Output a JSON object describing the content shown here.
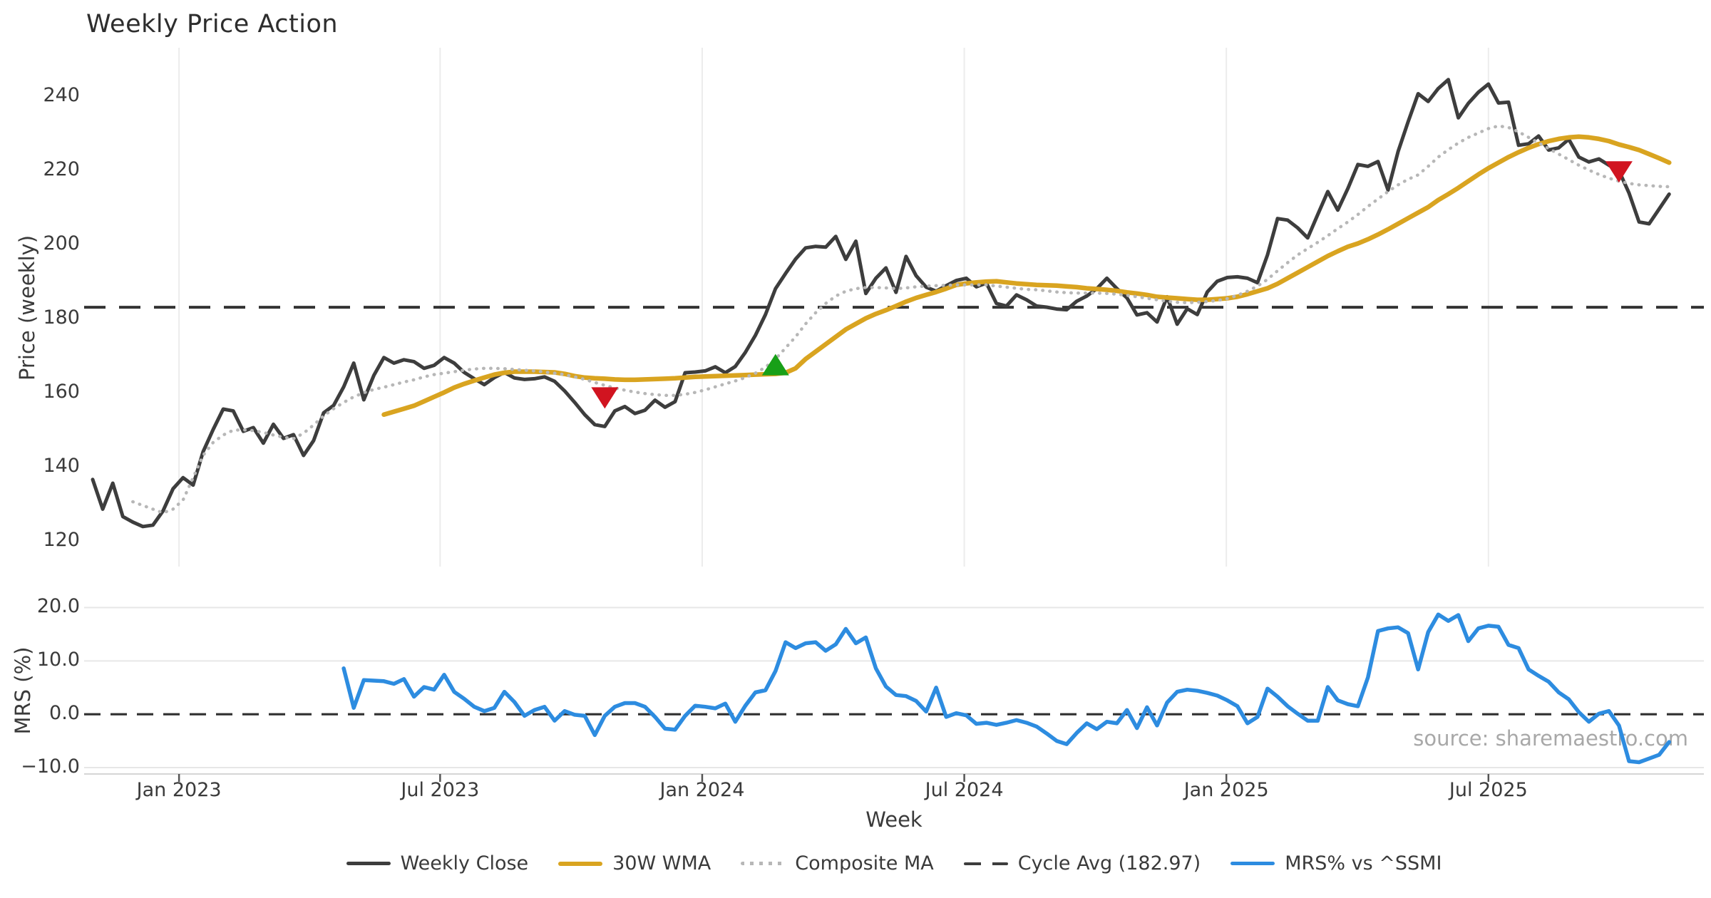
{
  "page": {
    "title": "Weekly Price Action",
    "source_note": "source: sharemaestro.com"
  },
  "legend": {
    "items": [
      {
        "label": "Weekly Close",
        "swatch": "solid",
        "color": "#3d3d3d",
        "thickness": 5
      },
      {
        "label": "30W WMA",
        "swatch": "solid",
        "color": "#d9a420",
        "thickness": 6
      },
      {
        "label": "Composite MA",
        "swatch": "dotted",
        "color": "#b7b7b7",
        "thickness": 5
      },
      {
        "label": "Cycle Avg (182.97)",
        "swatch": "dashed",
        "color": "#3d3d3d",
        "thickness": 4
      },
      {
        "label": "MRS% vs ^SSMI",
        "swatch": "solid",
        "color": "#2d8ce0",
        "thickness": 5
      }
    ]
  },
  "chart_data": {
    "type": "line",
    "title": "Weekly Price Action",
    "x_unit": "weekly, Nov 2022 - Oct 2025",
    "axes": {
      "x_label": "Week",
      "x_ticks": [
        {
          "week": 8.6,
          "label": "Jan 2023"
        },
        {
          "week": 34.6,
          "label": "Jul 2023"
        },
        {
          "week": 60.7,
          "label": "Jan 2024"
        },
        {
          "week": 86.8,
          "label": "Jul 2024"
        },
        {
          "week": 112.9,
          "label": "Jan 2025"
        },
        {
          "week": 139.0,
          "label": "Jul 2025"
        }
      ],
      "price_panel": {
        "y_label": "Price (weekly)",
        "ylim": [
          113,
          253
        ],
        "y_ticks": [
          {
            "v": 120,
            "label": "120"
          },
          {
            "v": 140,
            "label": "140"
          },
          {
            "v": 160,
            "label": "160"
          },
          {
            "v": 180,
            "label": "180"
          },
          {
            "v": 200,
            "label": "200"
          },
          {
            "v": 220,
            "label": "220"
          },
          {
            "v": 240,
            "label": "240"
          }
        ],
        "grid": "vertical-only"
      },
      "mrs_panel": {
        "y_label": "MRS (%)",
        "ylim": [
          -11.2,
          21.0
        ],
        "y_ticks": [
          {
            "v": -10,
            "label": "−10.0"
          },
          {
            "v": 0,
            "label": "0.0"
          },
          {
            "v": 10,
            "label": "10.0"
          },
          {
            "v": 20,
            "label": "20.0"
          }
        ],
        "grid": "horizontal-only",
        "zero_line_dashed": true
      }
    },
    "ref_lines": [
      {
        "name": "Cycle Avg",
        "panel": "price",
        "value": 182.97,
        "style": "dashed",
        "color": "#333333"
      },
      {
        "name": "Zero",
        "panel": "mrs",
        "value": 0,
        "style": "dashed",
        "color": "#2f2f2f"
      }
    ],
    "series": [
      {
        "name": "Weekly Close",
        "panel": "price",
        "color": "#3d3d3d",
        "style": "solid",
        "width": 5,
        "start_week": 0,
        "values": [
          136.5,
          128.5,
          135.5,
          126.5,
          125.0,
          123.8,
          124.2,
          128.0,
          134.0,
          137.0,
          135.0,
          144.0,
          150.0,
          155.5,
          155.0,
          149.5,
          150.5,
          146.3,
          151.4,
          147.6,
          148.6,
          143.0,
          147.0,
          154.5,
          156.5,
          161.5,
          167.9,
          158.0,
          164.6,
          169.4,
          167.9,
          168.8,
          168.3,
          166.5,
          167.3,
          169.4,
          167.9,
          165.4,
          163.7,
          162.1,
          164.0,
          165.4,
          163.9,
          163.5,
          163.7,
          164.2,
          163.0,
          160.4,
          157.3,
          154.0,
          151.3,
          150.8,
          155.0,
          156.2,
          154.3,
          155.2,
          157.9,
          156.0,
          157.5,
          165.3,
          165.5,
          165.8,
          166.9,
          165.3,
          167.0,
          170.8,
          175.4,
          181.0,
          188.0,
          192.1,
          196.0,
          199.0,
          199.4,
          199.2,
          202.1,
          195.9,
          200.8,
          186.7,
          190.8,
          193.6,
          187.0,
          196.7,
          191.5,
          188.4,
          187.3,
          188.8,
          190.2,
          190.8,
          188.5,
          189.5,
          184.0,
          183.3,
          186.3,
          185.0,
          183.3,
          183.0,
          182.5,
          182.3,
          184.6,
          186.0,
          188.0,
          190.8,
          188.0,
          185.5,
          180.9,
          181.5,
          179.0,
          185.8,
          178.4,
          182.6,
          181.0,
          187.1,
          190.0,
          191.0,
          191.2,
          190.8,
          189.6,
          197.1,
          206.9,
          206.5,
          204.4,
          201.7,
          208.0,
          214.2,
          209.2,
          215.0,
          221.5,
          221.0,
          222.3,
          214.6,
          225.0,
          233.0,
          240.6,
          238.5,
          242.0,
          244.4,
          234.1,
          238.0,
          241.0,
          243.2,
          238.1,
          238.3,
          226.7,
          227.1,
          229.2,
          225.4,
          226.0,
          228.3,
          223.5,
          222.2,
          223.0,
          221.3,
          219.8,
          213.8,
          206.0,
          205.5,
          209.5,
          213.5
        ]
      },
      {
        "name": "30W WMA",
        "panel": "price",
        "color": "#d9a420",
        "style": "solid",
        "width": 6.5,
        "start_week": 29,
        "values": [
          154.0,
          154.8,
          155.6,
          156.4,
          157.6,
          158.8,
          160.0,
          161.3,
          162.3,
          163.2,
          164.0,
          164.8,
          165.3,
          165.6,
          165.6,
          165.6,
          165.5,
          165.4,
          165.0,
          164.4,
          164.0,
          163.8,
          163.7,
          163.5,
          163.4,
          163.4,
          163.5,
          163.6,
          163.7,
          163.8,
          164.0,
          164.2,
          164.3,
          164.4,
          164.5,
          164.6,
          164.7,
          164.8,
          164.9,
          165.0,
          165.3,
          166.5,
          169.0,
          171.0,
          173.0,
          175.0,
          177.0,
          178.5,
          180.0,
          181.2,
          182.2,
          183.3,
          184.5,
          185.5,
          186.3,
          187.1,
          188.0,
          189.0,
          189.4,
          189.7,
          189.9,
          190.0,
          189.7,
          189.4,
          189.2,
          189.0,
          188.9,
          188.8,
          188.6,
          188.4,
          188.1,
          187.9,
          187.7,
          187.4,
          187.0,
          186.7,
          186.3,
          185.8,
          185.6,
          185.4,
          185.2,
          185.0,
          185.0,
          185.2,
          185.4,
          185.8,
          186.5,
          187.3,
          188.1,
          189.3,
          190.8,
          192.3,
          193.8,
          195.3,
          196.8,
          198.1,
          199.3,
          200.2,
          201.3,
          202.6,
          204.0,
          205.5,
          207.0,
          208.5,
          210.0,
          211.9,
          213.5,
          215.2,
          217.0,
          218.8,
          220.5,
          222.0,
          223.5,
          224.8,
          226.0,
          227.0,
          227.8,
          228.4,
          228.8,
          229.0,
          228.8,
          228.4,
          227.8,
          226.9,
          226.2,
          225.4,
          224.3,
          223.2,
          222.0
        ]
      },
      {
        "name": "Composite MA",
        "panel": "price",
        "color": "#b7b7b7",
        "style": "dotted",
        "width": 4.5,
        "start_week": 4,
        "values": [
          130.5,
          129.5,
          128.5,
          127.5,
          128.5,
          131.0,
          137.0,
          143.0,
          146.5,
          148.5,
          149.8,
          149.9,
          149.7,
          149.2,
          148.5,
          147.9,
          147.5,
          149.0,
          151.2,
          153.7,
          155.6,
          157.3,
          158.8,
          159.9,
          160.8,
          161.4,
          162.1,
          162.8,
          163.4,
          164.2,
          164.8,
          165.2,
          165.6,
          166.0,
          166.3,
          166.5,
          166.5,
          166.4,
          166.2,
          166.0,
          165.8,
          165.5,
          165.2,
          164.8,
          164.2,
          163.5,
          162.7,
          161.9,
          161.2,
          160.6,
          160.1,
          159.7,
          159.4,
          159.2,
          159.2,
          159.5,
          160.0,
          160.7,
          161.5,
          162.3,
          163.1,
          164.0,
          165.2,
          166.8,
          169.0,
          172.0,
          175.0,
          178.5,
          181.5,
          184.0,
          186.0,
          187.3,
          188.0,
          188.3,
          188.3,
          188.2,
          188.0,
          188.2,
          188.5,
          188.7,
          188.8,
          188.9,
          189.0,
          189.0,
          189.0,
          189.0,
          188.7,
          188.4,
          188.1,
          187.8,
          187.7,
          187.4,
          187.1,
          186.9,
          186.8,
          186.8,
          186.8,
          186.7,
          186.5,
          186.2,
          185.8,
          185.4,
          185.0,
          184.6,
          184.3,
          184.2,
          184.3,
          184.5,
          184.8,
          185.3,
          186.2,
          187.3,
          188.7,
          190.5,
          192.8,
          195.0,
          197.1,
          198.8,
          200.5,
          202.3,
          204.2,
          206.0,
          208.0,
          210.2,
          212.2,
          214.2,
          216.0,
          217.5,
          218.7,
          221.0,
          223.5,
          225.5,
          227.3,
          228.8,
          230.0,
          231.2,
          231.9,
          231.5,
          230.3,
          228.8,
          227.3,
          225.8,
          224.3,
          222.8,
          221.3,
          220.0,
          218.8,
          217.8,
          217.0,
          216.4,
          216.0,
          215.8,
          215.6,
          215.5
        ]
      },
      {
        "name": "MRS% vs ^SSMI",
        "panel": "mrs",
        "color": "#2d8ce0",
        "style": "solid",
        "width": 5.5,
        "start_week": 25,
        "values": [
          8.6,
          1.2,
          6.4,
          6.3,
          6.2,
          5.7,
          6.6,
          3.3,
          5.1,
          4.6,
          7.4,
          4.2,
          2.9,
          1.4,
          0.6,
          1.2,
          4.2,
          2.3,
          -0.3,
          0.8,
          1.4,
          -1.2,
          0.6,
          -0.1,
          -0.3,
          -3.9,
          -0.3,
          1.4,
          2.1,
          2.1,
          1.4,
          -0.5,
          -2.7,
          -2.9,
          -0.3,
          1.6,
          1.4,
          1.1,
          2.0,
          -1.4,
          1.6,
          4.1,
          4.5,
          8.1,
          13.5,
          12.4,
          13.3,
          13.5,
          11.9,
          13.1,
          16.0,
          13.3,
          14.4,
          8.6,
          5.2,
          3.6,
          3.4,
          2.5,
          0.5,
          5.0,
          -0.5,
          0.2,
          -0.2,
          -1.8,
          -1.6,
          -2.0,
          -1.6,
          -1.1,
          -1.6,
          -2.3,
          -3.6,
          -5.0,
          -5.6,
          -3.5,
          -1.7,
          -2.8,
          -1.4,
          -1.7,
          0.8,
          -2.6,
          1.3,
          -2.1,
          2.2,
          4.2,
          4.6,
          4.4,
          4.0,
          3.5,
          2.6,
          1.5,
          -1.7,
          -0.5,
          4.8,
          3.3,
          1.5,
          0.1,
          -1.2,
          -1.2,
          5.1,
          2.6,
          1.9,
          1.5,
          6.9,
          15.6,
          16.1,
          16.3,
          15.2,
          8.4,
          15.4,
          18.7,
          17.5,
          18.6,
          13.7,
          16.1,
          16.6,
          16.4,
          13.0,
          12.4,
          8.4,
          7.2,
          6.1,
          4.1,
          2.8,
          0.4,
          -1.4,
          0.1,
          0.6,
          -2.1,
          -8.8,
          -9.0,
          -8.3,
          -7.6,
          -5.2
        ]
      }
    ],
    "markers": [
      {
        "shape": "triangle-down",
        "color": "#d11420",
        "panel": "price",
        "week": 51,
        "value": 158.5
      },
      {
        "shape": "triangle-up",
        "color": "#18a018",
        "panel": "price",
        "week": 68,
        "value": 167.5
      },
      {
        "shape": "triangle-down",
        "color": "#d11420",
        "panel": "price",
        "week": 152,
        "value": 219.5
      }
    ]
  }
}
